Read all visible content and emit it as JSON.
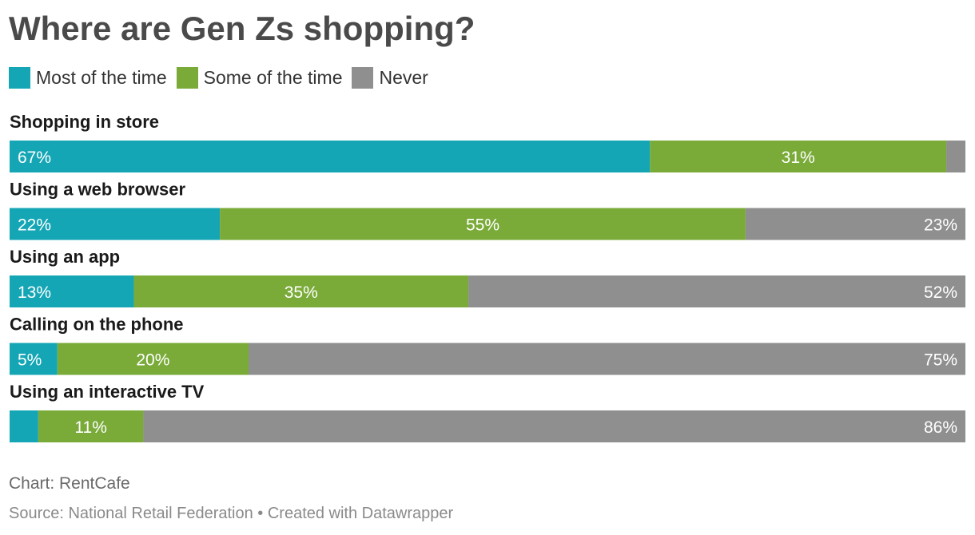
{
  "title": "Where are Gen Zs shopping?",
  "legend": [
    {
      "label": "Most of the time",
      "color": "#14a6b5"
    },
    {
      "label": "Some of the time",
      "color": "#7aab39"
    },
    {
      "label": "Never",
      "color": "#8f8f8f"
    }
  ],
  "chart_data": {
    "type": "bar",
    "orientation": "horizontal",
    "stacked": true,
    "xlim": [
      0,
      100
    ],
    "categories": [
      "Shopping in store",
      "Using a web browser",
      "Using an app",
      "Calling on the phone",
      "Using an interactive TV"
    ],
    "series": [
      {
        "name": "Most of the time",
        "color": "#14a6b5",
        "values": [
          67,
          22,
          13,
          5,
          3
        ],
        "labels": [
          "67%",
          "22%",
          "13%",
          "5%",
          ""
        ]
      },
      {
        "name": "Some of the time",
        "color": "#7aab39",
        "values": [
          31,
          55,
          35,
          20,
          11
        ],
        "labels": [
          "31%",
          "55%",
          "35%",
          "20%",
          "11%"
        ]
      },
      {
        "name": "Never",
        "color": "#8f8f8f",
        "values": [
          2,
          23,
          52,
          75,
          86
        ],
        "labels": [
          "",
          "23%",
          "52%",
          "75%",
          "86%"
        ]
      }
    ]
  },
  "footer": {
    "chart_credit": "Chart: RentCafe",
    "source": "Source: National Retail Federation • Created with Datawrapper"
  }
}
